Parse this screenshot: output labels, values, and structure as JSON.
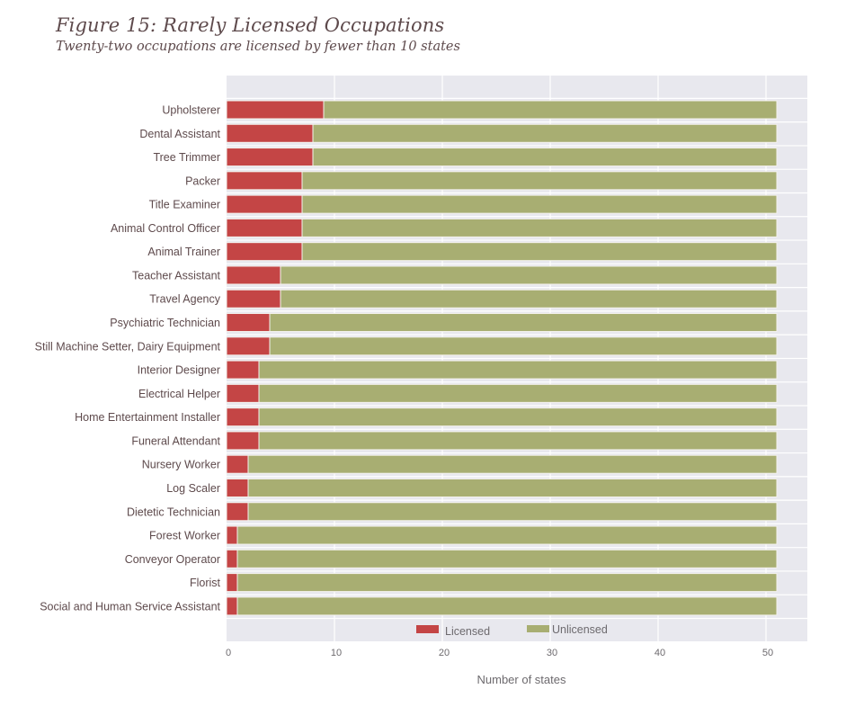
{
  "chart_data": {
    "type": "bar",
    "orientation": "horizontal",
    "stacked": true,
    "title": "Figure 15: Rarely Licensed Occupations",
    "subtitle": "Twenty-two occupations are licensed by fewer than 10 states",
    "xlabel": "Number of states",
    "ylabel": "",
    "xlim": [
      0,
      53.7
    ],
    "xticks": [
      0,
      10,
      20,
      30,
      40,
      50
    ],
    "xtick_labels": [
      "0",
      "10",
      "20",
      "30",
      "40",
      "50"
    ],
    "grid": true,
    "legend_position": "bottom-center",
    "categories": [
      "Upholsterer",
      "Dental Assistant",
      "Tree Trimmer",
      "Packer",
      "Title Examiner",
      "Animal Control Officer",
      "Animal Trainer",
      "Teacher Assistant",
      "Travel Agency",
      "Psychiatric Technician",
      "Still Machine Setter, Dairy Equipment",
      "Interior Designer",
      "Electrical Helper",
      "Home Entertainment Installer",
      "Funeral Attendant",
      "Nursery Worker",
      "Log Scaler",
      "Dietetic Technician",
      "Forest Worker",
      "Conveyor Operator",
      "Florist",
      "Social and Human Service Assistant"
    ],
    "series": [
      {
        "name": "Licensed",
        "color": "#c44545",
        "values": [
          9,
          8,
          8,
          7,
          7,
          7,
          7,
          5,
          5,
          4,
          4,
          3,
          3,
          3,
          3,
          2,
          2,
          2,
          1,
          1,
          1,
          1
        ]
      },
      {
        "name": "Unlicensed",
        "color": "#a8ae72",
        "values": [
          42,
          43,
          43,
          44,
          44,
          44,
          44,
          46,
          46,
          47,
          47,
          48,
          48,
          48,
          48,
          49,
          49,
          49,
          50,
          50,
          50,
          50
        ]
      }
    ],
    "colors": {
      "panel_background": "#e8e8ee",
      "grid": "#ffffff",
      "text": "#5e4a4c"
    }
  }
}
